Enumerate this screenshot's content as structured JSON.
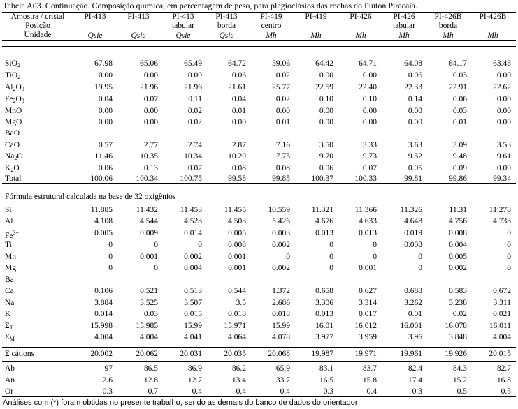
{
  "caption": "Tabela A03. Continuação. Composição química, em percentagem de peso, para plagioclásios das rochas do Plúton Piracaia.",
  "header": {
    "row_labels": [
      "Amostra / cristal",
      "Posição",
      "Unidade"
    ],
    "columns": [
      {
        "sample": "PI-413",
        "position": "",
        "unit": "Qsie"
      },
      {
        "sample": "PI-413",
        "position": "",
        "unit": "Qsie"
      },
      {
        "sample": "PI-413",
        "position": "tabular",
        "unit": "Qsie"
      },
      {
        "sample": "PI-413",
        "position": "borda",
        "unit": "Qsie"
      },
      {
        "sample": "PI-419",
        "position": "centro",
        "unit": "Mh"
      },
      {
        "sample": "PI-419",
        "position": "",
        "unit": "Mh"
      },
      {
        "sample": "PI-426",
        "position": "",
        "unit": "Mh"
      },
      {
        "sample": "PI-426",
        "position": "tabular",
        "unit": "Mh"
      },
      {
        "sample": "PI-426B",
        "position": "borda",
        "unit": "Mh"
      },
      {
        "sample": "PI-426B",
        "position": "",
        "unit": "Mh"
      }
    ]
  },
  "oxides": [
    {
      "base": "SiO",
      "sub": "2",
      "values": [
        "67.98",
        "65.06",
        "65.49",
        "64.72",
        "59.06",
        "64.42",
        "64.71",
        "64.08",
        "64.17",
        "63.48"
      ]
    },
    {
      "base": "TiO",
      "sub": "2",
      "values": [
        "0.00",
        "0.00",
        "0.00",
        "0.06",
        "0.02",
        "0.00",
        "0.00",
        "0.06",
        "0.03",
        "0.00"
      ]
    },
    {
      "base": "Al",
      "sub": "2",
      "base2": "O",
      "sub2": "3",
      "values": [
        "19.95",
        "21.96",
        "21.96",
        "21.61",
        "25.77",
        "22.59",
        "22.40",
        "22.33",
        "22.91",
        "22.62"
      ]
    },
    {
      "base": "Fe",
      "sub": "2",
      "base2": "O",
      "sub2": "3",
      "values": [
        "0.04",
        "0.07",
        "0.11",
        "0.04",
        "0.02",
        "0.10",
        "0.10",
        "0.14",
        "0.06",
        "0.00"
      ]
    },
    {
      "base": "MnO",
      "sub": "",
      "values": [
        "0.00",
        "0.00",
        "0.02",
        "0.01",
        "0.00",
        "0.00",
        "0.00",
        "0.00",
        "0.03",
        "0.00"
      ]
    },
    {
      "base": "MgO",
      "sub": "",
      "values": [
        "0.00",
        "0.00",
        "0.02",
        "0.00",
        "0.01",
        "0.00",
        "0.00",
        "0.00",
        "0.01",
        "0.00"
      ]
    },
    {
      "base": "BaO",
      "sub": "",
      "values": [
        "",
        "",
        "",
        "",
        "",
        "",
        "",
        "",
        "",
        ""
      ]
    },
    {
      "base": "CaO",
      "sub": "",
      "values": [
        "0.57",
        "2.77",
        "2.74",
        "2.87",
        "7.16",
        "3.50",
        "3.33",
        "3.63",
        "3.09",
        "3.53"
      ]
    },
    {
      "base": "Na",
      "sub": "2",
      "base2": "O",
      "sub2": "",
      "values": [
        "11.46",
        "10.35",
        "10.34",
        "10.20",
        "7.75",
        "9.70",
        "9.73",
        "9.52",
        "9.48",
        "9.61"
      ]
    },
    {
      "base": "K",
      "sub": "2",
      "base2": "O",
      "sub2": "",
      "values": [
        "0.06",
        "0.13",
        "0.07",
        "0.08",
        "0.08",
        "0.06",
        "0.07",
        "0.05",
        "0.09",
        "0.09"
      ]
    }
  ],
  "total": {
    "label": "Total",
    "values": [
      "100.06",
      "100.34",
      "100.75",
      "99.58",
      "99.85",
      "100.37",
      "100.33",
      "99.81",
      "99.86",
      "99.34"
    ]
  },
  "formula_title": "Fórmula estrutural calculada na base de 32 oxigênios",
  "formula": [
    {
      "label": "Si",
      "sup": "",
      "values": [
        "11.885",
        "11.432",
        "11.453",
        "11.455",
        "10.559",
        "11.321",
        "11.366",
        "11.326",
        "11.31",
        "11.278"
      ]
    },
    {
      "label": "Al",
      "sup": "",
      "values": [
        "4.108",
        "4.544",
        "4.523",
        "4.503",
        "5.426",
        "4.676",
        "4.633",
        "4.648",
        "4.756",
        "4.733"
      ]
    },
    {
      "label": "Fe",
      "sup": "3+",
      "values": [
        "0.005",
        "0.009",
        "0.014",
        "0.005",
        "0.003",
        "0.013",
        "0.013",
        "0.019",
        "0.008",
        "0"
      ]
    },
    {
      "label": "Ti",
      "sup": "",
      "values": [
        "0",
        "0",
        "0",
        "0.008",
        "0.002",
        "0",
        "0",
        "0.008",
        "0.004",
        "0"
      ]
    },
    {
      "label": "Mn",
      "sup": "",
      "values": [
        "0",
        "0.001",
        "0.002",
        "0.001",
        "0",
        "0",
        "0",
        "0",
        "0.005",
        "0"
      ]
    },
    {
      "label": "Mg",
      "sup": "",
      "values": [
        "0",
        "0",
        "0.004",
        "0.001",
        "0.002",
        "0",
        "0.001",
        "0",
        "0.002",
        "0"
      ]
    },
    {
      "label": "Ba",
      "sup": "",
      "values": [
        "",
        "",
        "",
        "",
        "",
        "",
        "",
        "",
        "",
        ""
      ]
    },
    {
      "label": "Ca",
      "sup": "",
      "values": [
        "0.106",
        "0.521",
        "0.513",
        "0.544",
        "1.372",
        "0.658",
        "0.627",
        "0.688",
        "0.583",
        "0.672"
      ]
    },
    {
      "label": "Na",
      "sup": "",
      "values": [
        "3.884",
        "3.525",
        "3.507",
        "3.5",
        "2.686",
        "3.306",
        "3.314",
        "3.262",
        "3.238",
        "3.311"
      ]
    },
    {
      "label": "K",
      "sup": "",
      "values": [
        "0.014",
        "0.03",
        "0.015",
        "0.018",
        "0.018",
        "0.013",
        "0.017",
        "0.01",
        "0.02",
        "0.021"
      ]
    },
    {
      "label": "Σ",
      "subl": "T",
      "values": [
        "15.998",
        "15.985",
        "15.99",
        "15.971",
        "15.99",
        "16.01",
        "16.012",
        "16.001",
        "16.078",
        "16.011"
      ]
    },
    {
      "label": "Σ",
      "subl": "M",
      "values": [
        "4.004",
        "4.004",
        "4.041",
        "4.064",
        "4.078",
        "3.977",
        "3.959",
        "3.96",
        "3.848",
        "4.004"
      ]
    }
  ],
  "cations": {
    "label": "Σ cátions",
    "values": [
      "20.002",
      "20.062",
      "20.031",
      "20.035",
      "20.068",
      "19.987",
      "19.971",
      "19.961",
      "19.926",
      "20.015"
    ]
  },
  "endmembers": [
    {
      "label": "Ab",
      "values": [
        "97",
        "86.5",
        "86.9",
        "86.2",
        "65.9",
        "83.1",
        "83.7",
        "82.4",
        "84.3",
        "82.7"
      ]
    },
    {
      "label": "An",
      "values": [
        "2.6",
        "12.8",
        "12.7",
        "13.4",
        "33.7",
        "16.5",
        "15.8",
        "17.4",
        "15.2",
        "16.8"
      ]
    },
    {
      "label": "Or",
      "values": [
        "0.3",
        "0.7",
        "0.4",
        "0.4",
        "0.4",
        "0.3",
        "0.4",
        "0.3",
        "0.5",
        "0.5"
      ]
    }
  ],
  "footnote": "Análises com (*) foram obtidas no presente trabalho, sendo as demais do banco de dados do orientador"
}
